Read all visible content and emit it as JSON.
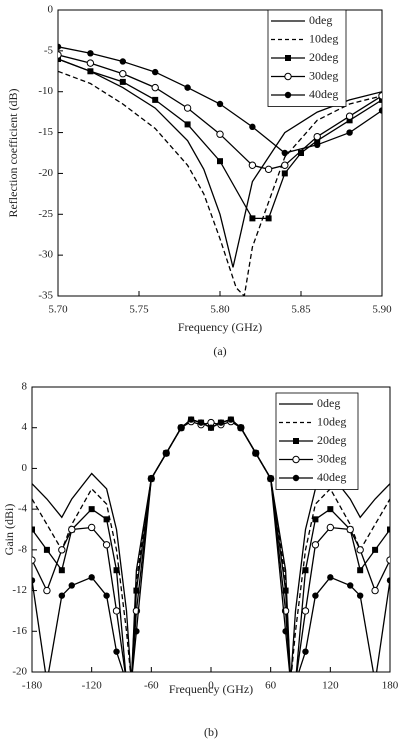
{
  "chart_data": [
    {
      "type": "line",
      "x_label": "Frequency (GHz)",
      "y_label": "Reflection coefficient (dB)",
      "caption": "(a)",
      "xlim": [
        5.7,
        5.9
      ],
      "ylim": [
        -35,
        0
      ],
      "xticks": [
        {
          "value": 5.7,
          "label": "5.70"
        },
        5.75,
        {
          "value": 5.8,
          "label": "5.80"
        },
        5.85,
        {
          "value": 5.9,
          "label": "5.90"
        }
      ],
      "yticks": [
        0,
        -5,
        -10,
        -15,
        -20,
        -25,
        -30,
        -35
      ],
      "legend": "upper right",
      "series": [
        {
          "name": "0deg",
          "color": "#000000",
          "dash": false,
          "marker": "none",
          "x": [
            5.7,
            5.72,
            5.74,
            5.76,
            5.78,
            5.79,
            5.8,
            5.808,
            5.82,
            5.84,
            5.86,
            5.88,
            5.9
          ],
          "values": [
            -6,
            -7.5,
            -9.5,
            -12,
            -16,
            -19.5,
            -25,
            -31.5,
            -21,
            -15,
            -12.5,
            -11,
            -10
          ]
        },
        {
          "name": "10deg",
          "color": "#000000",
          "dash": true,
          "marker": "none",
          "x": [
            5.7,
            5.72,
            5.74,
            5.76,
            5.78,
            5.79,
            5.8,
            5.81,
            5.815,
            5.82,
            5.84,
            5.86,
            5.88,
            5.9
          ],
          "values": [
            -7.5,
            -9,
            -11.5,
            -14.5,
            -19,
            -22.5,
            -28,
            -34,
            -35,
            -29,
            -18,
            -13.5,
            -11.5,
            -10.5
          ]
        },
        {
          "name": "20deg",
          "color": "#000000",
          "dash": false,
          "marker": "square",
          "x": [
            5.7,
            5.72,
            5.74,
            5.76,
            5.78,
            5.8,
            5.82,
            5.83,
            5.84,
            5.85,
            5.86,
            5.88,
            5.9
          ],
          "values": [
            -6,
            -7.5,
            -8.8,
            -11,
            -14,
            -18.5,
            -25.5,
            -25.5,
            -20,
            -17.5,
            -16,
            -13.5,
            -11
          ]
        },
        {
          "name": "30deg",
          "color": "#000000",
          "dash": false,
          "marker": "open-circle",
          "x": [
            5.7,
            5.72,
            5.74,
            5.76,
            5.78,
            5.8,
            5.82,
            5.83,
            5.84,
            5.86,
            5.88,
            5.9
          ],
          "values": [
            -5.5,
            -6.5,
            -7.8,
            -9.5,
            -12,
            -15.2,
            -19,
            -19.5,
            -19,
            -15.5,
            -13,
            -10.5
          ]
        },
        {
          "name": "40deg",
          "color": "#000000",
          "dash": false,
          "marker": "circle",
          "x": [
            5.7,
            5.72,
            5.74,
            5.76,
            5.78,
            5.8,
            5.82,
            5.84,
            5.86,
            5.88,
            5.9
          ],
          "values": [
            -4.5,
            -5.3,
            -6.3,
            -7.6,
            -9.5,
            -11.5,
            -14.3,
            -17.5,
            -16.5,
            -15,
            -12.3
          ]
        }
      ]
    },
    {
      "type": "line",
      "x_label": "Frequency (GHz)",
      "y_label": "Gain (dBi)",
      "caption": "(b)",
      "xlim": [
        -180,
        180
      ],
      "ylim": [
        -20,
        8
      ],
      "xticks": [
        -180,
        -120,
        -60,
        0,
        60,
        120,
        180
      ],
      "yticks": [
        -20,
        -16,
        -12,
        -8,
        -4,
        0,
        4,
        8
      ],
      "legend": "upper right",
      "series": [
        {
          "name": "0deg",
          "color": "#000000",
          "dash": false,
          "marker": "none",
          "x": [
            -180,
            -165,
            -150,
            -140,
            -120,
            -105,
            -95,
            -85,
            -80,
            -75,
            -60,
            -45,
            -30,
            -20,
            -10,
            0,
            10,
            20,
            30,
            45,
            60,
            75,
            80,
            85,
            95,
            105,
            120,
            140,
            150,
            165,
            180
          ],
          "values": [
            -1.5,
            -3,
            -4.8,
            -3,
            -0.5,
            -2,
            -6,
            -14,
            -21,
            -10,
            -1,
            1.5,
            4,
            4.8,
            4.5,
            4,
            4.5,
            4.8,
            4,
            1.5,
            -1,
            -10,
            -21,
            -14,
            -6,
            -2,
            -0.5,
            -3,
            -4.8,
            -3,
            -1.5
          ]
        },
        {
          "name": "10deg",
          "color": "#000000",
          "dash": true,
          "marker": "none",
          "x": [
            -180,
            -165,
            -150,
            -140,
            -120,
            -105,
            -95,
            -85,
            -80,
            -75,
            -60,
            -45,
            -30,
            -20,
            -10,
            0,
            10,
            20,
            30,
            45,
            60,
            75,
            80,
            85,
            95,
            105,
            120,
            140,
            150,
            165,
            180
          ],
          "values": [
            -3,
            -5.5,
            -8,
            -5.5,
            -2,
            -3.5,
            -8,
            -16,
            -21,
            -11,
            -1,
            1.5,
            4,
            4.8,
            4.5,
            4.2,
            4.5,
            4.8,
            4,
            1.5,
            -1,
            -11,
            -21,
            -16,
            -8,
            -3.5,
            -2,
            -5.5,
            -8,
            -5.5,
            -3
          ]
        },
        {
          "name": "20deg",
          "color": "#000000",
          "dash": false,
          "marker": "square",
          "x": [
            -180,
            -165,
            -150,
            -140,
            -120,
            -105,
            -95,
            -85,
            -80,
            -75,
            -60,
            -45,
            -30,
            -20,
            -10,
            0,
            10,
            20,
            30,
            45,
            60,
            75,
            80,
            85,
            95,
            105,
            120,
            140,
            150,
            165,
            180
          ],
          "values": [
            -6,
            -8,
            -10,
            -6,
            -4,
            -5,
            -10,
            -21,
            -21,
            -12,
            -1,
            1.5,
            4,
            4.8,
            4.5,
            4,
            4.5,
            4.8,
            4,
            1.5,
            -1,
            -12,
            -21,
            -21,
            -10,
            -5,
            -4,
            -6,
            -10,
            -8,
            -6
          ]
        },
        {
          "name": "30deg",
          "color": "#000000",
          "dash": false,
          "marker": "open-circle",
          "x": [
            -180,
            -165,
            -150,
            -140,
            -120,
            -105,
            -95,
            -85,
            -80,
            -75,
            -60,
            -45,
            -30,
            -20,
            -10,
            0,
            10,
            20,
            30,
            45,
            60,
            75,
            80,
            85,
            95,
            105,
            120,
            140,
            150,
            165,
            180
          ],
          "values": [
            -9,
            -12,
            -8,
            -6,
            -5.8,
            -7.5,
            -14,
            -21,
            -21,
            -14,
            -1,
            1.5,
            4,
            4.6,
            4.3,
            4.5,
            4.3,
            4.6,
            4,
            1.5,
            -1,
            -14,
            -21,
            -21,
            -14,
            -7.5,
            -5.8,
            -6,
            -8,
            -12,
            -9
          ]
        },
        {
          "name": "40deg",
          "color": "#000000",
          "dash": false,
          "marker": "circle",
          "x": [
            -180,
            -165,
            -150,
            -140,
            -120,
            -105,
            -95,
            -85,
            -80,
            -75,
            -60,
            -45,
            -30,
            -20,
            -10,
            0,
            10,
            20,
            30,
            45,
            60,
            75,
            80,
            85,
            95,
            105,
            120,
            140,
            150,
            165,
            180
          ],
          "values": [
            -11,
            -21,
            -12.5,
            -11.5,
            -10.7,
            -12.5,
            -18,
            -21,
            -21,
            -16,
            -1,
            1.5,
            4,
            4.8,
            4.5,
            4,
            4.5,
            4.8,
            4,
            1.5,
            -1,
            -16,
            -21,
            -21,
            -18,
            -12.5,
            -10.7,
            -11.5,
            -12.5,
            -21,
            -11
          ]
        }
      ]
    }
  ]
}
